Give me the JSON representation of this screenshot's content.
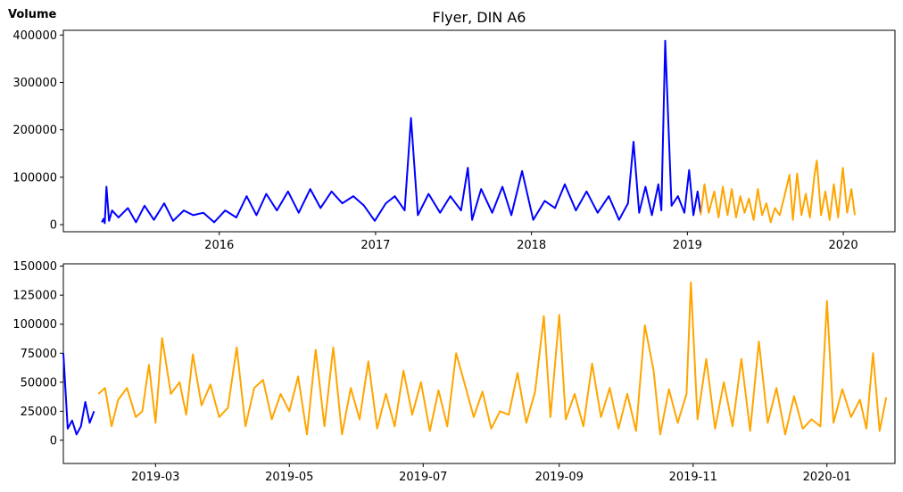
{
  "colors": {
    "history": "#0000ff",
    "recent": "#ffa500",
    "axes": "#000000",
    "background": "#ffffff"
  },
  "chart_data": [
    {
      "type": "line",
      "title": "Flyer, DIN A6",
      "ylabel": "Volume",
      "xlabel": "",
      "xlim": [
        "2015-01-01",
        "2020-05-01"
      ],
      "ylim": [
        -15000,
        410000
      ],
      "grid": false,
      "x_ticks": [
        "2016",
        "2017",
        "2018",
        "2019",
        "2020"
      ],
      "y_ticks": [
        0,
        100000,
        200000,
        300000,
        400000
      ],
      "y_tick_labels": [
        "0",
        "100000",
        "200000",
        "300000",
        "400000"
      ],
      "series": [
        {
          "color": "history",
          "x": [
            "2015-04-01",
            "2015-04-05",
            "2015-04-08",
            "2015-04-12",
            "2015-04-18",
            "2015-04-25",
            "2015-05-10",
            "2015-06-01",
            "2015-06-20",
            "2015-07-10",
            "2015-08-01",
            "2015-08-25",
            "2015-09-15",
            "2015-10-10",
            "2015-11-01",
            "2015-11-25",
            "2015-12-20",
            "2016-01-15",
            "2016-02-10",
            "2016-03-05",
            "2016-03-28",
            "2016-04-20",
            "2016-05-15",
            "2016-06-10",
            "2016-07-05",
            "2016-08-01",
            "2016-08-25",
            "2016-09-20",
            "2016-10-15",
            "2016-11-10",
            "2016-12-05",
            "2016-12-30",
            "2017-01-25",
            "2017-02-15",
            "2017-03-10",
            "2017-03-25",
            "2017-04-10",
            "2017-05-05",
            "2017-06-01",
            "2017-06-25",
            "2017-07-20",
            "2017-08-05",
            "2017-08-15",
            "2017-09-05",
            "2017-10-01",
            "2017-10-25",
            "2017-11-15",
            "2017-12-10",
            "2018-01-05",
            "2018-02-01",
            "2018-02-25",
            "2018-03-20",
            "2018-04-15",
            "2018-05-10",
            "2018-06-05",
            "2018-07-01",
            "2018-07-25",
            "2018-08-15",
            "2018-08-28",
            "2018-09-10",
            "2018-09-25",
            "2018-10-10",
            "2018-10-25",
            "2018-11-01",
            "2018-11-10",
            "2018-11-25",
            "2018-12-10",
            "2018-12-25",
            "2019-01-05",
            "2019-01-15",
            "2019-01-25",
            "2019-02-01"
          ],
          "y": [
            5000,
            12000,
            3000,
            80000,
            8000,
            30000,
            15000,
            35000,
            5000,
            40000,
            10000,
            45000,
            8000,
            30000,
            20000,
            25000,
            5000,
            30000,
            15000,
            60000,
            20000,
            65000,
            30000,
            70000,
            25000,
            75000,
            35000,
            70000,
            45000,
            60000,
            40000,
            8000,
            45000,
            60000,
            30000,
            225000,
            20000,
            65000,
            25000,
            60000,
            30000,
            120000,
            10000,
            75000,
            25000,
            80000,
            20000,
            113000,
            10000,
            50000,
            35000,
            85000,
            30000,
            70000,
            25000,
            60000,
            10000,
            45000,
            175000,
            25000,
            80000,
            20000,
            85000,
            30000,
            388000,
            40000,
            60000,
            25000,
            115000,
            20000,
            70000,
            25000
          ]
        },
        {
          "color": "recent",
          "x": [
            "2019-02-01",
            "2019-02-10",
            "2019-02-20",
            "2019-03-05",
            "2019-03-15",
            "2019-03-25",
            "2019-04-05",
            "2019-04-15",
            "2019-04-25",
            "2019-05-05",
            "2019-05-15",
            "2019-05-25",
            "2019-06-05",
            "2019-06-15",
            "2019-06-25",
            "2019-07-05",
            "2019-07-15",
            "2019-07-25",
            "2019-08-05",
            "2019-08-15",
            "2019-08-28",
            "2019-09-05",
            "2019-09-15",
            "2019-09-25",
            "2019-10-05",
            "2019-10-15",
            "2019-10-25",
            "2019-10-31",
            "2019-11-10",
            "2019-11-20",
            "2019-11-30",
            "2019-12-10",
            "2019-12-20",
            "2019-12-31",
            "2020-01-10",
            "2020-01-20",
            "2020-01-28"
          ],
          "y": [
            20000,
            85000,
            25000,
            70000,
            15000,
            80000,
            20000,
            75000,
            15000,
            60000,
            25000,
            55000,
            10000,
            75000,
            20000,
            45000,
            5000,
            35000,
            20000,
            55000,
            105000,
            10000,
            108000,
            20000,
            65000,
            15000,
            100000,
            135000,
            20000,
            70000,
            10000,
            85000,
            15000,
            120000,
            25000,
            75000,
            20000
          ]
        }
      ]
    },
    {
      "type": "line",
      "title": "",
      "ylabel": "",
      "xlabel": "",
      "xlim": [
        "2019-01-18",
        "2020-02-01"
      ],
      "ylim": [
        -20000,
        152000
      ],
      "grid": false,
      "x_ticks": [
        "2019-03",
        "2019-05",
        "2019-07",
        "2019-09",
        "2019-11",
        "2020-01"
      ],
      "y_ticks": [
        0,
        25000,
        50000,
        75000,
        100000,
        125000,
        150000
      ],
      "y_tick_labels": [
        "0",
        "25000",
        "50000",
        "75000",
        "100000",
        "125000",
        "150000"
      ],
      "series": [
        {
          "color": "history",
          "x": [
            "2019-01-18",
            "2019-01-20",
            "2019-01-22",
            "2019-01-24",
            "2019-01-26",
            "2019-01-28",
            "2019-01-30",
            "2019-02-01"
          ],
          "y": [
            75000,
            10000,
            17000,
            5000,
            12000,
            33000,
            15000,
            25000
          ]
        },
        {
          "color": "recent",
          "x": [
            "2019-02-03",
            "2019-02-06",
            "2019-02-09",
            "2019-02-12",
            "2019-02-16",
            "2019-02-20",
            "2019-02-23",
            "2019-02-26",
            "2019-03-01",
            "2019-03-04",
            "2019-03-08",
            "2019-03-12",
            "2019-03-15",
            "2019-03-18",
            "2019-03-22",
            "2019-03-26",
            "2019-03-30",
            "2019-04-03",
            "2019-04-07",
            "2019-04-11",
            "2019-04-15",
            "2019-04-19",
            "2019-04-23",
            "2019-04-27",
            "2019-05-01",
            "2019-05-05",
            "2019-05-09",
            "2019-05-13",
            "2019-05-17",
            "2019-05-21",
            "2019-05-25",
            "2019-05-29",
            "2019-06-02",
            "2019-06-06",
            "2019-06-10",
            "2019-06-14",
            "2019-06-18",
            "2019-06-22",
            "2019-06-26",
            "2019-06-30",
            "2019-07-04",
            "2019-07-08",
            "2019-07-12",
            "2019-07-16",
            "2019-07-20",
            "2019-07-24",
            "2019-07-28",
            "2019-08-01",
            "2019-08-05",
            "2019-08-09",
            "2019-08-13",
            "2019-08-17",
            "2019-08-21",
            "2019-08-25",
            "2019-08-28",
            "2019-09-01",
            "2019-09-04",
            "2019-09-08",
            "2019-09-12",
            "2019-09-16",
            "2019-09-20",
            "2019-09-24",
            "2019-09-28",
            "2019-10-02",
            "2019-10-06",
            "2019-10-10",
            "2019-10-14",
            "2019-10-17",
            "2019-10-21",
            "2019-10-25",
            "2019-10-29",
            "2019-10-31",
            "2019-11-03",
            "2019-11-07",
            "2019-11-11",
            "2019-11-15",
            "2019-11-19",
            "2019-11-23",
            "2019-11-27",
            "2019-12-01",
            "2019-12-05",
            "2019-12-09",
            "2019-12-13",
            "2019-12-17",
            "2019-12-21",
            "2019-12-25",
            "2019-12-29",
            "2020-01-01",
            "2020-01-04",
            "2020-01-08",
            "2020-01-12",
            "2020-01-16",
            "2020-01-19",
            "2020-01-22",
            "2020-01-25",
            "2020-01-28"
          ],
          "y": [
            40000,
            45000,
            12000,
            35000,
            45000,
            20000,
            25000,
            65000,
            15000,
            88000,
            40000,
            50000,
            22000,
            74000,
            30000,
            48000,
            20000,
            28000,
            80000,
            12000,
            45000,
            52000,
            18000,
            40000,
            25000,
            55000,
            5000,
            78000,
            12000,
            80000,
            5000,
            45000,
            18000,
            68000,
            10000,
            40000,
            12000,
            60000,
            22000,
            50000,
            8000,
            43000,
            12000,
            75000,
            48000,
            20000,
            42000,
            10000,
            25000,
            22000,
            58000,
            15000,
            42000,
            107000,
            20000,
            108000,
            18000,
            40000,
            12000,
            66000,
            20000,
            45000,
            10000,
            40000,
            8000,
            99000,
            60000,
            5000,
            44000,
            15000,
            40000,
            136000,
            18000,
            70000,
            10000,
            50000,
            12000,
            70000,
            8000,
            85000,
            15000,
            45000,
            5000,
            38000,
            10000,
            18000,
            12000,
            120000,
            15000,
            44000,
            20000,
            35000,
            10000,
            75000,
            8000,
            37000
          ]
        }
      ]
    }
  ]
}
